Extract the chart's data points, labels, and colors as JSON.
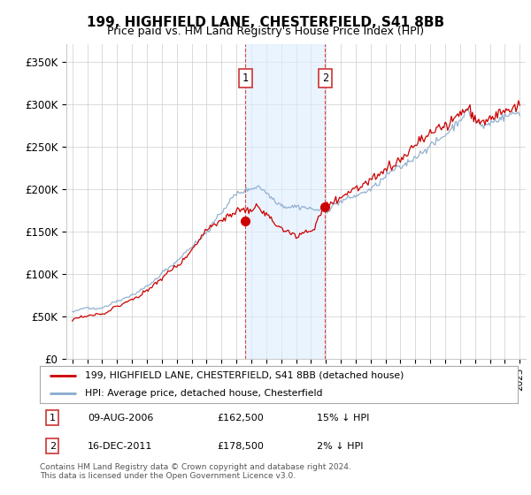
{
  "title": "199, HIGHFIELD LANE, CHESTERFIELD, S41 8BB",
  "subtitle": "Price paid vs. HM Land Registry's House Price Index (HPI)",
  "red_label": "199, HIGHFIELD LANE, CHESTERFIELD, S41 8BB (detached house)",
  "blue_label": "HPI: Average price, detached house, Chesterfield",
  "transaction1": {
    "date": "09-AUG-2006",
    "price": 162500,
    "pct": "15% ↓ HPI",
    "num": 1
  },
  "transaction2": {
    "date": "16-DEC-2011",
    "price": 178500,
    "pct": "2% ↓ HPI",
    "num": 2
  },
  "footer": "Contains HM Land Registry data © Crown copyright and database right 2024.\nThis data is licensed under the Open Government Licence v3.0.",
  "ylim": [
    0,
    370000
  ],
  "yticks": [
    0,
    50000,
    100000,
    150000,
    200000,
    250000,
    300000,
    350000
  ],
  "ytick_labels": [
    "£0",
    "£50K",
    "£100K",
    "£150K",
    "£200K",
    "£250K",
    "£300K",
    "£350K"
  ],
  "background_color": "#ffffff",
  "grid_color": "#cccccc",
  "red_color": "#cc0000",
  "blue_color": "#88aacc",
  "transaction1_x": 2006.6,
  "transaction2_x": 2011.95,
  "shade_color": "#ddeeff",
  "title_fontsize": 11,
  "subtitle_fontsize": 9
}
